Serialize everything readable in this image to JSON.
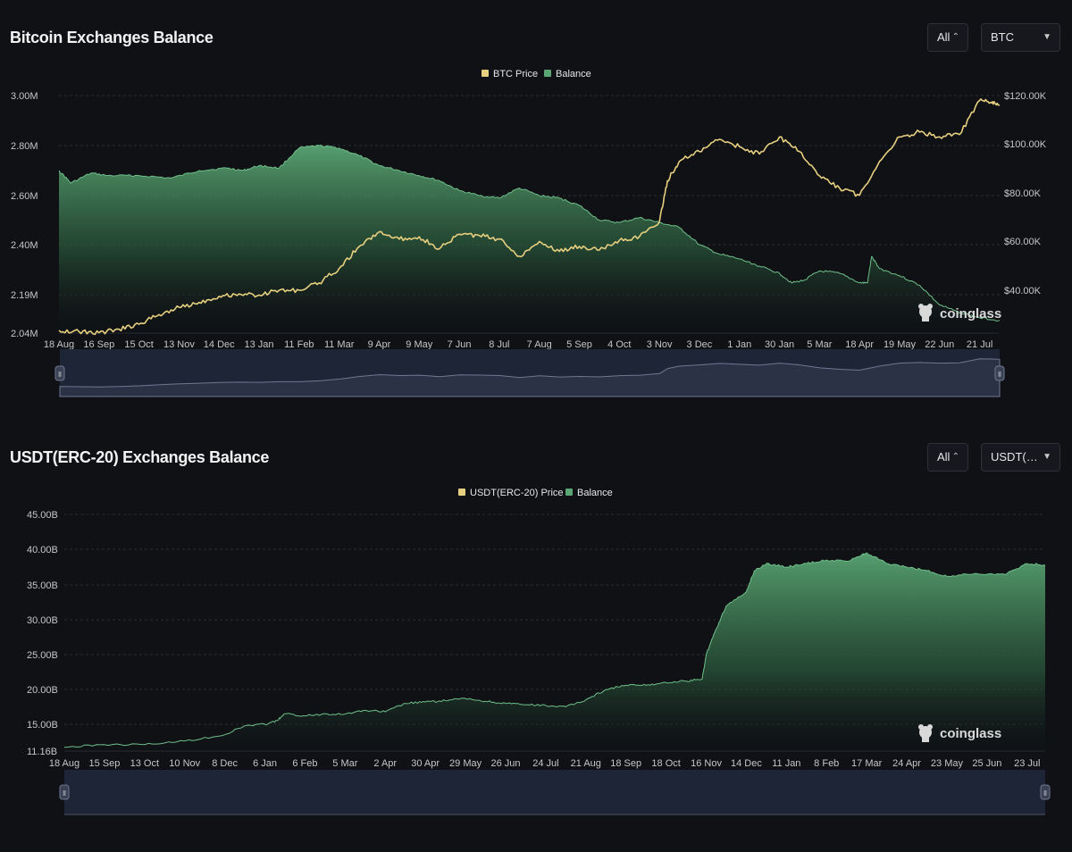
{
  "colors": {
    "background": "#0f1115",
    "price_line": "#e6cf7e",
    "balance": "#5aa574",
    "grid": "#2a2d33",
    "axis_text": "#c5c6c8",
    "slider_bg": "#1e2537"
  },
  "btc_panel": {
    "title": "Bitcoin Exchanges Balance",
    "range_value": "All",
    "range_icon": "up-down-chevron-icon",
    "asset_value": "BTC",
    "asset_icon": "caret-down-icon",
    "watermark": "coinglass",
    "watermark_icon": "coinglass-logo-icon"
  },
  "usdt_panel": {
    "title": "USDT(ERC-20) Exchanges Balance",
    "range_value": "All",
    "range_icon": "up-down-chevron-icon",
    "asset_value": "USDT(…",
    "asset_icon": "caret-down-icon",
    "watermark": "coinglass",
    "watermark_icon": "coinglass-logo-icon"
  },
  "chart_data": [
    {
      "type": "area",
      "id": "btc",
      "title": "Bitcoin Exchanges Balance",
      "legend": [
        "BTC Price",
        "Balance"
      ],
      "legend_placement": "top-center",
      "grid": true,
      "x_labels": [
        "18 Aug",
        "16 Sep",
        "15 Oct",
        "13 Nov",
        "14 Dec",
        "13 Jan",
        "11 Feb",
        "11 Mar",
        "9 Apr",
        "9 May",
        "7 Jun",
        "8 Jul",
        "7 Aug",
        "5 Sep",
        "4 Oct",
        "3 Nov",
        "3 Dec",
        "1 Jan",
        "30 Jan",
        "5 Mar",
        "18 Apr",
        "19 May",
        "22 Jun",
        "21 Jul"
      ],
      "y_left_ticks": [
        "3.00M",
        "2.80M",
        "2.60M",
        "2.40M",
        "2.19M",
        "2.04M"
      ],
      "y_left_range": [
        2040000,
        3000000
      ],
      "y_right_ticks": [
        "$120.00K",
        "$100.00K",
        "$80.00K",
        "$60.00K",
        "$40.00K"
      ],
      "y_right_range": [
        20000,
        120000
      ],
      "x_range": [
        0,
        23.5
      ],
      "series": [
        {
          "name": "Balance",
          "axis": "left",
          "points": [
            [
              0,
              2700000
            ],
            [
              0.3,
              2650000
            ],
            [
              0.8,
              2690000
            ],
            [
              1.2,
              2680000
            ],
            [
              2,
              2680000
            ],
            [
              2.8,
              2670000
            ],
            [
              3.5,
              2700000
            ],
            [
              4.2,
              2710000
            ],
            [
              4.6,
              2700000
            ],
            [
              5,
              2720000
            ],
            [
              5.5,
              2710000
            ],
            [
              6,
              2790000
            ],
            [
              6.5,
              2800000
            ],
            [
              7,
              2790000
            ],
            [
              7.5,
              2760000
            ],
            [
              8,
              2720000
            ],
            [
              8.5,
              2700000
            ],
            [
              9,
              2680000
            ],
            [
              9.5,
              2660000
            ],
            [
              10,
              2620000
            ],
            [
              10.5,
              2600000
            ],
            [
              11,
              2590000
            ],
            [
              11.5,
              2630000
            ],
            [
              12,
              2600000
            ],
            [
              12.5,
              2590000
            ],
            [
              13,
              2560000
            ],
            [
              13.5,
              2500000
            ],
            [
              14,
              2490000
            ],
            [
              14.5,
              2510000
            ],
            [
              15,
              2490000
            ],
            [
              15.5,
              2470000
            ],
            [
              16,
              2400000
            ],
            [
              16.5,
              2360000
            ],
            [
              17,
              2340000
            ],
            [
              17.5,
              2310000
            ],
            [
              18,
              2280000
            ],
            [
              18.3,
              2240000
            ],
            [
              18.6,
              2250000
            ],
            [
              19,
              2290000
            ],
            [
              19.5,
              2280000
            ],
            [
              20,
              2240000
            ],
            [
              20.2,
              2240000
            ],
            [
              20.3,
              2350000
            ],
            [
              20.5,
              2300000
            ],
            [
              21,
              2270000
            ],
            [
              21.5,
              2230000
            ],
            [
              22,
              2150000
            ],
            [
              22.5,
              2120000
            ],
            [
              23,
              2100000
            ],
            [
              23.5,
              2090000
            ]
          ]
        },
        {
          "name": "BTC Price",
          "axis": "right",
          "points": [
            [
              0,
              23500
            ],
            [
              0.5,
              23000
            ],
            [
              1,
              22500
            ],
            [
              1.5,
              24000
            ],
            [
              2,
              26000
            ],
            [
              2.5,
              30000
            ],
            [
              3,
              33000
            ],
            [
              3.5,
              35000
            ],
            [
              4,
              37500
            ],
            [
              4.5,
              38500
            ],
            [
              5,
              38000
            ],
            [
              5.5,
              40000
            ],
            [
              6,
              40000
            ],
            [
              6.5,
              43000
            ],
            [
              7,
              49000
            ],
            [
              7.5,
              58000
            ],
            [
              8,
              64000
            ],
            [
              8.5,
              61000
            ],
            [
              9,
              62000
            ],
            [
              9.5,
              57000
            ],
            [
              10,
              63000
            ],
            [
              10.5,
              62500
            ],
            [
              11,
              61000
            ],
            [
              11.5,
              54000
            ],
            [
              12,
              60000
            ],
            [
              12.5,
              56000
            ],
            [
              13,
              58000
            ],
            [
              13.5,
              56500
            ],
            [
              14,
              60500
            ],
            [
              14.5,
              62000
            ],
            [
              15,
              68000
            ],
            [
              15.2,
              85000
            ],
            [
              15.5,
              93000
            ],
            [
              16,
              97000
            ],
            [
              16.5,
              102000
            ],
            [
              17,
              99000
            ],
            [
              17.5,
              96000
            ],
            [
              18,
              103000
            ],
            [
              18.5,
              97000
            ],
            [
              19,
              87000
            ],
            [
              19.5,
              82000
            ],
            [
              20,
              79000
            ],
            [
              20.5,
              93000
            ],
            [
              21,
              103000
            ],
            [
              21.5,
              105000
            ],
            [
              22,
              103000
            ],
            [
              22.5,
              104000
            ],
            [
              23,
              118000
            ],
            [
              23.3,
              117000
            ],
            [
              23.5,
              116000
            ]
          ]
        }
      ]
    },
    {
      "type": "area",
      "id": "usdt",
      "title": "USDT(ERC-20) Exchanges Balance",
      "legend": [
        "USDT(ERC-20) Price",
        "Balance"
      ],
      "legend_placement": "top-center",
      "grid": true,
      "x_labels": [
        "18 Aug",
        "15 Sep",
        "13 Oct",
        "10 Nov",
        "8 Dec",
        "6 Jan",
        "6 Feb",
        "5 Mar",
        "2 Apr",
        "30 Apr",
        "29 May",
        "26 Jun",
        "24 Jul",
        "21 Aug",
        "18 Sep",
        "18 Oct",
        "16 Nov",
        "14 Dec",
        "11 Jan",
        "8 Feb",
        "17 Mar",
        "24 Apr",
        "23 May",
        "25 Jun",
        "23 Jul"
      ],
      "y_ticks": [
        "45.00B",
        "40.00B",
        "35.00B",
        "30.00B",
        "25.00B",
        "20.00B",
        "15.00B",
        "11.16B"
      ],
      "y_range": [
        11160000000,
        45000000000
      ],
      "x_range": [
        0,
        24.45
      ],
      "series": [
        {
          "name": "Balance",
          "axis": "left",
          "points": [
            [
              0,
              11700000000
            ],
            [
              1,
              12100000000
            ],
            [
              2,
              12100000000
            ],
            [
              3,
              12600000000
            ],
            [
              4,
              13500000000
            ],
            [
              4.5,
              14800000000
            ],
            [
              5,
              15000000000
            ],
            [
              5.3,
              15500000000
            ],
            [
              5.5,
              16500000000
            ],
            [
              6,
              16200000000
            ],
            [
              6.5,
              16500000000
            ],
            [
              7,
              16500000000
            ],
            [
              7.5,
              17000000000
            ],
            [
              8,
              16800000000
            ],
            [
              8.5,
              18000000000
            ],
            [
              9,
              18200000000
            ],
            [
              9.5,
              18400000000
            ],
            [
              10,
              18700000000
            ],
            [
              10.5,
              18300000000
            ],
            [
              11,
              18000000000
            ],
            [
              11.5,
              17800000000
            ],
            [
              12,
              17700000000
            ],
            [
              12.5,
              17500000000
            ],
            [
              13,
              18500000000
            ],
            [
              13.5,
              20000000000
            ],
            [
              14,
              20600000000
            ],
            [
              14.5,
              20600000000
            ],
            [
              15,
              21000000000
            ],
            [
              15.5,
              21200000000
            ],
            [
              15.9,
              21500000000
            ],
            [
              16,
              25000000000
            ],
            [
              16.2,
              28000000000
            ],
            [
              16.5,
              32000000000
            ],
            [
              17,
              34000000000
            ],
            [
              17.2,
              37000000000
            ],
            [
              17.5,
              38000000000
            ],
            [
              18,
              37500000000
            ],
            [
              18.5,
              38000000000
            ],
            [
              19,
              38500000000
            ],
            [
              19.5,
              38300000000
            ],
            [
              20,
              39500000000
            ],
            [
              20.5,
              38000000000
            ],
            [
              21,
              37500000000
            ],
            [
              21.5,
              37000000000
            ],
            [
              22,
              36200000000
            ],
            [
              22.5,
              36500000000
            ],
            [
              23,
              36500000000
            ],
            [
              23.5,
              36600000000
            ],
            [
              24,
              38000000000
            ],
            [
              24.45,
              37800000000
            ]
          ]
        }
      ]
    }
  ]
}
